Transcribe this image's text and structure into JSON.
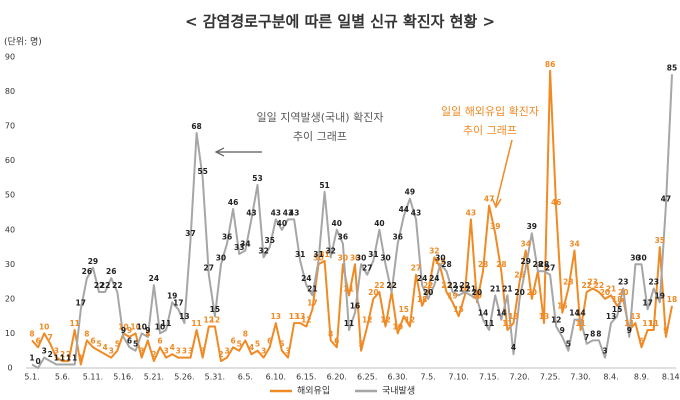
{
  "chart_data": {
    "type": "line",
    "title": "< 감염경로구분에 따른 일별 신규 확진자 현황 >",
    "unit_label": "(단위: 명)",
    "categories": [
      "5.1.",
      null,
      null,
      null,
      null,
      "5.6.",
      null,
      null,
      null,
      null,
      "5.11.",
      null,
      null,
      null,
      null,
      "5.16.",
      null,
      null,
      null,
      null,
      "5.21.",
      null,
      null,
      null,
      null,
      "5.26.",
      null,
      null,
      null,
      null,
      "5.31.",
      null,
      null,
      null,
      null,
      "6.5.",
      null,
      null,
      null,
      null,
      "6.10.",
      null,
      null,
      null,
      null,
      "6.15.",
      null,
      null,
      null,
      null,
      "6.20.",
      null,
      null,
      null,
      null,
      "6.25.",
      null,
      null,
      null,
      null,
      "6.30.",
      null,
      null,
      null,
      null,
      "7.5.",
      null,
      null,
      null,
      null,
      "7.10.",
      null,
      null,
      null,
      null,
      "7.15.",
      null,
      null,
      null,
      null,
      "7.20.",
      null,
      null,
      null,
      null,
      "7.25.",
      null,
      null,
      null,
      null,
      "7.30.",
      null,
      null,
      null,
      null,
      "8.4.",
      null,
      null,
      null,
      null,
      "8.9.",
      null,
      null,
      null,
      null,
      "8.14."
    ],
    "series": [
      {
        "name": "해외유입",
        "color": "#f08a24",
        "values": [
          8,
          6,
          10,
          7,
          3,
          2,
          2,
          11,
          1,
          8,
          6,
          5,
          4,
          3,
          5,
          10,
          9,
          10,
          3,
          8,
          2,
          6,
          3,
          4,
          3,
          3,
          3,
          11,
          3,
          12,
          12,
          2,
          3,
          6,
          5,
          8,
          4,
          5,
          3,
          6,
          13,
          5,
          3,
          13,
          13,
          12,
          17,
          30,
          31,
          8,
          6,
          30,
          21,
          30,
          5,
          12,
          20,
          22,
          12,
          22,
          10,
          15,
          12,
          27,
          18,
          22,
          32,
          29,
          22,
          19,
          15,
          21,
          43,
          19,
          28,
          47,
          39,
          28,
          11,
          13,
          25,
          34,
          20,
          28,
          13,
          86,
          46,
          16,
          23,
          34,
          11,
          22,
          23,
          22,
          20,
          21,
          18,
          20,
          11,
          13,
          6,
          11,
          11,
          35,
          9,
          18
        ]
      },
      {
        "name": "국내발생",
        "color": "#a6a6a6",
        "values": [
          1,
          0,
          3,
          2,
          1,
          1,
          1,
          1,
          17,
          26,
          29,
          22,
          22,
          26,
          22,
          9,
          6,
          5,
          10,
          9,
          24,
          10,
          11,
          19,
          17,
          13,
          37,
          68,
          55,
          27,
          15,
          30,
          36,
          46,
          33,
          34,
          43,
          53,
          32,
          35,
          43,
          40,
          43,
          43,
          31,
          24,
          21,
          31,
          51,
          32,
          40,
          36,
          11,
          16,
          30,
          27,
          31,
          40,
          30,
          22,
          36,
          44,
          49,
          43,
          24,
          20,
          24,
          30,
          28,
          22,
          21,
          22,
          21,
          20,
          14,
          11,
          21,
          14,
          21,
          4,
          20,
          29,
          39,
          28,
          28,
          27,
          12,
          9,
          5,
          14,
          14,
          7,
          8,
          8,
          3,
          13,
          15,
          23,
          9,
          30,
          30,
          17,
          23,
          19,
          47,
          85
        ]
      }
    ],
    "ylim": [
      0,
      90
    ],
    "yticks": [
      0,
      10,
      20,
      30,
      40,
      50,
      60,
      70,
      80,
      90
    ],
    "legend": "bottom",
    "annotations": [
      {
        "lines": [
          "일일 지역발생(국내) 확진자",
          "추이 그래프"
        ],
        "color": "#595959"
      },
      {
        "lines": [
          "일일 해외유입 확진자",
          "추이 그래프"
        ],
        "color": "#f08a24"
      }
    ]
  }
}
